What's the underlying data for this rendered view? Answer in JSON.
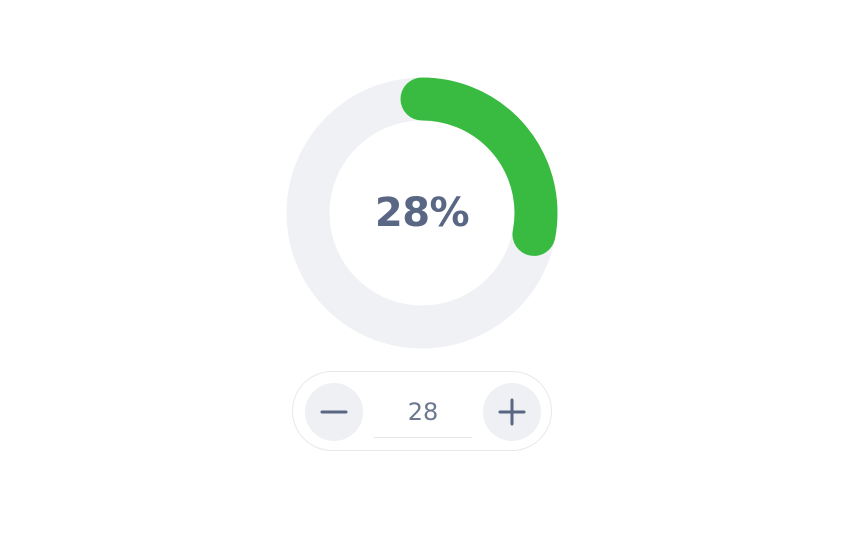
{
  "progress": {
    "value": 28,
    "max": 100,
    "label": "28%",
    "colors": {
      "fill": "#38bb40",
      "track": "#eff1f4",
      "text": "#5a6784"
    }
  },
  "stepper": {
    "value": "28",
    "decrement_icon": "minus-icon",
    "increment_icon": "plus-icon"
  }
}
